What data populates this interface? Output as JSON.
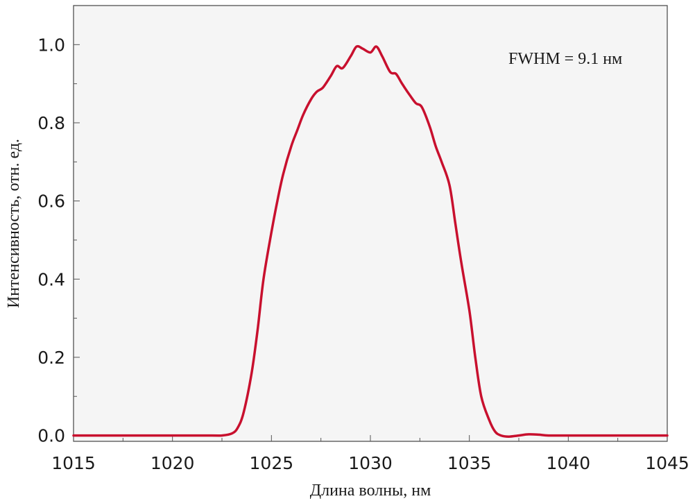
{
  "chart_data": {
    "type": "line",
    "title": "",
    "xlabel": "Длина волны, нм",
    "ylabel": "Интенсивность, отн. ед.",
    "xlim": [
      1015,
      1045
    ],
    "ylim": [
      -0.015,
      1.1
    ],
    "xticks": [
      1015,
      1020,
      1025,
      1030,
      1035,
      1040,
      1045
    ],
    "xtick_labels": [
      "1015",
      "1020",
      "1025",
      "1030",
      "1035",
      "1040",
      "1045"
    ],
    "yticks": [
      0.0,
      0.2,
      0.4,
      0.6,
      0.8,
      1.0
    ],
    "ytick_labels": [
      "0.0",
      "0.2",
      "0.4",
      "0.6",
      "0.8",
      "1.0"
    ],
    "grid": false,
    "legend": "none",
    "background_color": "#f5f5f5",
    "line_color": "#c8102e",
    "annotation": "FWHM = 9.1 нм",
    "series": [
      {
        "x": [
          1015,
          1018,
          1020,
          1022,
          1022.5,
          1023,
          1023.3,
          1023.6,
          1024,
          1024.3,
          1024.6,
          1025,
          1025.3,
          1025.6,
          1026,
          1026.3,
          1026.6,
          1027,
          1027.3,
          1027.6,
          1028,
          1028.3,
          1028.6,
          1029,
          1029.3,
          1029.6,
          1030,
          1030.3,
          1030.6,
          1031,
          1031.3,
          1031.6,
          1032,
          1032.3,
          1032.6,
          1033,
          1033.3,
          1033.6,
          1034,
          1034.3,
          1034.6,
          1035,
          1035.3,
          1035.6,
          1036,
          1036.3,
          1036.6,
          1037,
          1037.5,
          1038,
          1038.5,
          1039,
          1040,
          1042,
          1045
        ],
        "y": [
          0.0,
          0.0,
          0.0,
          0.0,
          0.0,
          0.005,
          0.02,
          0.06,
          0.16,
          0.27,
          0.4,
          0.52,
          0.6,
          0.67,
          0.74,
          0.78,
          0.82,
          0.86,
          0.88,
          0.89,
          0.92,
          0.945,
          0.94,
          0.97,
          0.995,
          0.99,
          0.98,
          0.995,
          0.97,
          0.93,
          0.925,
          0.9,
          0.87,
          0.85,
          0.84,
          0.79,
          0.74,
          0.7,
          0.64,
          0.54,
          0.44,
          0.32,
          0.2,
          0.1,
          0.04,
          0.01,
          0.0,
          -0.003,
          0.0,
          0.003,
          0.002,
          0.0,
          0.0,
          0.0,
          0.0
        ]
      }
    ]
  }
}
